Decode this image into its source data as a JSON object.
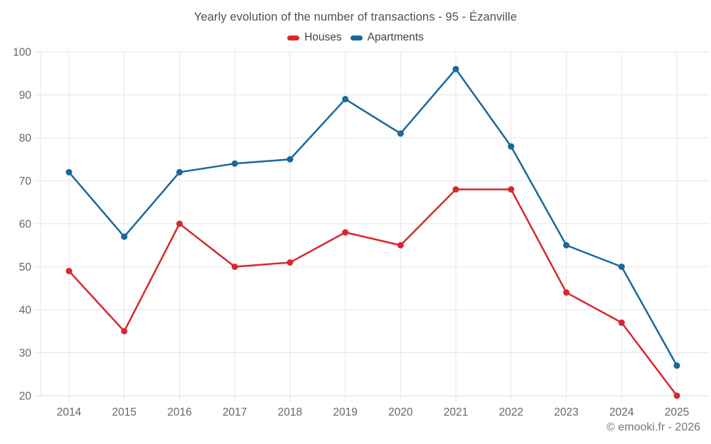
{
  "header": {
    "title": "Yearly evolution of the number of transactions - 95 - Ézanville"
  },
  "footer": {
    "credit": "© emooki.fr - 2026"
  },
  "colors": {
    "houses": "#d7282f",
    "apartments": "#17699e",
    "grid": "#e6e6e6",
    "axis_line": "#dcdcdc",
    "axis_text": "#666666",
    "title_text": "#4f4f4f"
  },
  "chart_data": {
    "type": "line",
    "title": "Yearly evolution of the number of transactions - 95 - Ézanville",
    "x": [
      "2014",
      "2015",
      "2016",
      "2017",
      "2018",
      "2019",
      "2020",
      "2021",
      "2022",
      "2023",
      "2024",
      "2025"
    ],
    "series": [
      {
        "name": "Houses",
        "color": "#d7282f",
        "values": [
          49,
          35,
          60,
          50,
          51,
          58,
          55,
          68,
          68,
          44,
          37,
          20
        ]
      },
      {
        "name": "Apartments",
        "color": "#17699e",
        "values": [
          72,
          57,
          72,
          74,
          75,
          89,
          81,
          96,
          78,
          55,
          50,
          27
        ]
      }
    ],
    "xlabel": "",
    "ylabel": "",
    "ylim": [
      20,
      100
    ],
    "y_ticks": [
      20,
      30,
      40,
      50,
      60,
      70,
      80,
      90,
      100
    ],
    "grid": true,
    "legend_position": "top"
  }
}
